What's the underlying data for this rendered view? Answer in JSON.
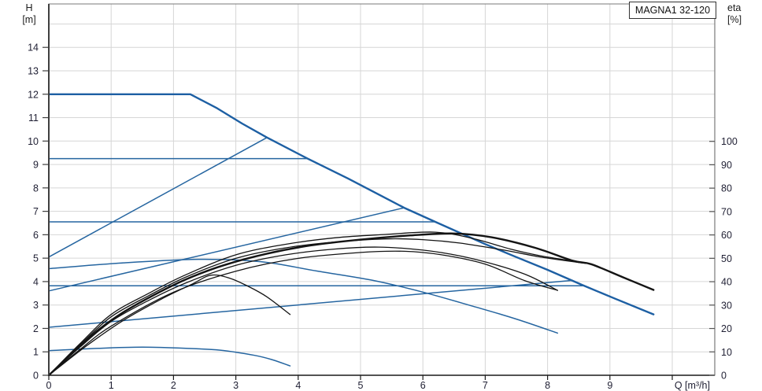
{
  "header": {
    "title": "MAGNA1 32-120"
  },
  "axis_labels": {
    "left_line1": "H",
    "left_line2": "[m]",
    "right_line1": "eta",
    "right_line2": "[%]",
    "x_label": "Q [m³/h]"
  },
  "colors": {
    "blue": "#2565a0",
    "blue_bold": "#1d5fa3",
    "black": "#141414",
    "grid": "#d6d6d6",
    "frame": "#7a7a7a",
    "axis_dark": "#3f3f3f",
    "text": "#1f1f33"
  },
  "chart_data": {
    "type": "line",
    "title": "MAGNA1 32-120",
    "x_axis": {
      "label": "Q [m³/h]",
      "min": 0,
      "max": 10.68,
      "ticks": [
        0,
        1,
        2,
        3,
        4,
        5,
        6,
        7,
        8,
        9
      ],
      "grid_lines": [
        1,
        2,
        3,
        4,
        5,
        6,
        7,
        8,
        9,
        10
      ]
    },
    "y_left": {
      "label": "H [m]",
      "min": 0,
      "max": 15.85,
      "ticks": [
        0,
        1,
        2,
        3,
        4,
        5,
        6,
        7,
        8,
        9,
        10,
        11,
        12,
        13,
        14
      ],
      "grid_lines": [
        1,
        2,
        3,
        4,
        5,
        6,
        7,
        8,
        9,
        10,
        11,
        12,
        13,
        14,
        15
      ]
    },
    "y_right": {
      "label": "eta [%]",
      "min": 0,
      "max": 158.5,
      "ticks": [
        0,
        10,
        20,
        30,
        40,
        50,
        60,
        70,
        80,
        90,
        100
      ]
    },
    "grid": true,
    "legend": "none",
    "series": [
      {
        "name": "max-speed-curve",
        "axis": "H",
        "color_key": "blue_bold",
        "width": 2.4,
        "smooth": false,
        "points": [
          [
            0,
            12
          ],
          [
            2.27,
            12
          ],
          [
            2.7,
            11.4
          ],
          [
            3.1,
            10.75
          ],
          [
            3.5,
            10.15
          ],
          [
            4.15,
            9.25
          ],
          [
            4.8,
            8.4
          ],
          [
            5.7,
            7.15
          ],
          [
            6.2,
            6.55
          ],
          [
            7.0,
            5.6
          ],
          [
            7.45,
            5.1
          ],
          [
            8.0,
            4.5
          ],
          [
            8.56,
            3.85
          ],
          [
            9.1,
            3.25
          ],
          [
            9.7,
            2.6
          ]
        ]
      },
      {
        "name": "const-pressure-9-2",
        "axis": "H",
        "color_key": "blue",
        "width": 1.5,
        "smooth": false,
        "points": [
          [
            0,
            9.25
          ],
          [
            4.15,
            9.25
          ]
        ]
      },
      {
        "name": "const-pressure-6-5",
        "axis": "H",
        "color_key": "blue",
        "width": 1.5,
        "smooth": false,
        "points": [
          [
            0,
            6.55
          ],
          [
            6.2,
            6.55
          ]
        ]
      },
      {
        "name": "const-pressure-3-8",
        "axis": "H",
        "color_key": "blue",
        "width": 1.5,
        "smooth": false,
        "points": [
          [
            0,
            3.82
          ],
          [
            8.56,
            3.82
          ]
        ]
      },
      {
        "name": "prop-pressure-high",
        "axis": "H",
        "color_key": "blue",
        "width": 1.5,
        "smooth": false,
        "points": [
          [
            0,
            5.05
          ],
          [
            3.5,
            10.15
          ]
        ]
      },
      {
        "name": "prop-pressure-mid",
        "axis": "H",
        "color_key": "blue",
        "width": 1.5,
        "smooth": false,
        "points": [
          [
            0,
            3.6
          ],
          [
            5.7,
            7.15
          ]
        ]
      },
      {
        "name": "prop-pressure-low",
        "axis": "H",
        "color_key": "blue",
        "width": 1.5,
        "smooth": false,
        "points": [
          [
            0,
            2.05
          ],
          [
            8.4,
            4.05
          ]
        ]
      },
      {
        "name": "mid-speed-curve",
        "axis": "H",
        "color_key": "blue",
        "width": 1.5,
        "smooth": true,
        "points": [
          [
            0,
            4.55
          ],
          [
            1.2,
            4.8
          ],
          [
            2.4,
            4.95
          ],
          [
            3.4,
            4.85
          ],
          [
            4.3,
            4.45
          ],
          [
            5.2,
            4.05
          ],
          [
            6.0,
            3.55
          ],
          [
            6.8,
            2.95
          ],
          [
            7.5,
            2.4
          ],
          [
            8.16,
            1.8
          ]
        ]
      },
      {
        "name": "min-speed-curve",
        "axis": "H",
        "color_key": "blue",
        "width": 1.5,
        "smooth": true,
        "points": [
          [
            0,
            1.05
          ],
          [
            0.8,
            1.15
          ],
          [
            1.5,
            1.2
          ],
          [
            2.2,
            1.15
          ],
          [
            2.75,
            1.07
          ],
          [
            3.3,
            0.85
          ],
          [
            3.6,
            0.65
          ],
          [
            3.87,
            0.4
          ]
        ]
      },
      {
        "name": "eta-max",
        "axis": "eta",
        "color_key": "black",
        "width": 2.4,
        "smooth": true,
        "points": [
          [
            0,
            0
          ],
          [
            0.4,
            10
          ],
          [
            0.8,
            19.5
          ],
          [
            1.2,
            27
          ],
          [
            1.7,
            34.5
          ],
          [
            2.2,
            41
          ],
          [
            2.8,
            47
          ],
          [
            3.5,
            52
          ],
          [
            4.2,
            55.5
          ],
          [
            5.0,
            58
          ],
          [
            5.8,
            59.8
          ],
          [
            6.5,
            60.6
          ],
          [
            7.1,
            59
          ],
          [
            7.8,
            54.5
          ],
          [
            8.4,
            49
          ],
          [
            8.7,
            47.5
          ],
          [
            9.2,
            42
          ],
          [
            9.7,
            36.5
          ]
        ]
      },
      {
        "name": "eta-curve-2",
        "axis": "eta",
        "color_key": "black",
        "width": 1.3,
        "smooth": true,
        "points": [
          [
            0,
            0
          ],
          [
            0.5,
            13.5
          ],
          [
            1,
            26
          ],
          [
            1.6,
            35
          ],
          [
            2.2,
            43
          ],
          [
            3,
            51.5
          ],
          [
            3.8,
            56
          ],
          [
            4.6,
            58.8
          ],
          [
            5.4,
            60.2
          ],
          [
            6.2,
            61.2
          ],
          [
            6.8,
            58.5
          ],
          [
            7.4,
            54
          ],
          [
            7.9,
            51
          ],
          [
            8.4,
            48.9
          ]
        ]
      },
      {
        "name": "eta-curve-3",
        "axis": "eta",
        "color_key": "black",
        "width": 1.3,
        "smooth": true,
        "points": [
          [
            0,
            0
          ],
          [
            0.5,
            13
          ],
          [
            1,
            25
          ],
          [
            1.6,
            34
          ],
          [
            2.2,
            42
          ],
          [
            3,
            50
          ],
          [
            3.8,
            54.5
          ],
          [
            4.6,
            57
          ],
          [
            5.4,
            58.3
          ],
          [
            6.0,
            58
          ],
          [
            6.6,
            56.5
          ],
          [
            7.3,
            53.5
          ],
          [
            7.9,
            50.5
          ],
          [
            8.62,
            47.8
          ]
        ]
      },
      {
        "name": "eta-curve-4",
        "axis": "eta",
        "color_key": "black",
        "width": 1.3,
        "smooth": true,
        "points": [
          [
            0,
            0
          ],
          [
            0.5,
            12
          ],
          [
            1,
            23
          ],
          [
            1.6,
            32
          ],
          [
            2.2,
            39.5
          ],
          [
            3,
            47
          ],
          [
            3.8,
            51.5
          ],
          [
            4.6,
            54
          ],
          [
            5.3,
            54.8
          ],
          [
            6.0,
            53.5
          ],
          [
            6.6,
            51
          ],
          [
            7.2,
            47
          ],
          [
            7.7,
            42.5
          ],
          [
            8.16,
            36.3
          ]
        ]
      },
      {
        "name": "eta-curve-5",
        "axis": "eta",
        "color_key": "black",
        "width": 1.3,
        "smooth": true,
        "points": [
          [
            0,
            0
          ],
          [
            0.5,
            11
          ],
          [
            1,
            21
          ],
          [
            2,
            35.5
          ],
          [
            3,
            44.5
          ],
          [
            4,
            50
          ],
          [
            5,
            52.5
          ],
          [
            5.7,
            53
          ],
          [
            6.3,
            51.5
          ],
          [
            7,
            47.5
          ],
          [
            7.63,
            40.5
          ],
          [
            8.16,
            36.3
          ]
        ]
      },
      {
        "name": "eta-min",
        "axis": "eta",
        "color_key": "black",
        "width": 1.3,
        "smooth": true,
        "points": [
          [
            0,
            0
          ],
          [
            0.6,
            12.5
          ],
          [
            1.2,
            23.5
          ],
          [
            1.8,
            32.5
          ],
          [
            2.3,
            39
          ],
          [
            2.6,
            42.8
          ],
          [
            2.9,
            41.5
          ],
          [
            3.2,
            38
          ],
          [
            3.5,
            33.5
          ],
          [
            3.87,
            26
          ]
        ]
      }
    ]
  }
}
